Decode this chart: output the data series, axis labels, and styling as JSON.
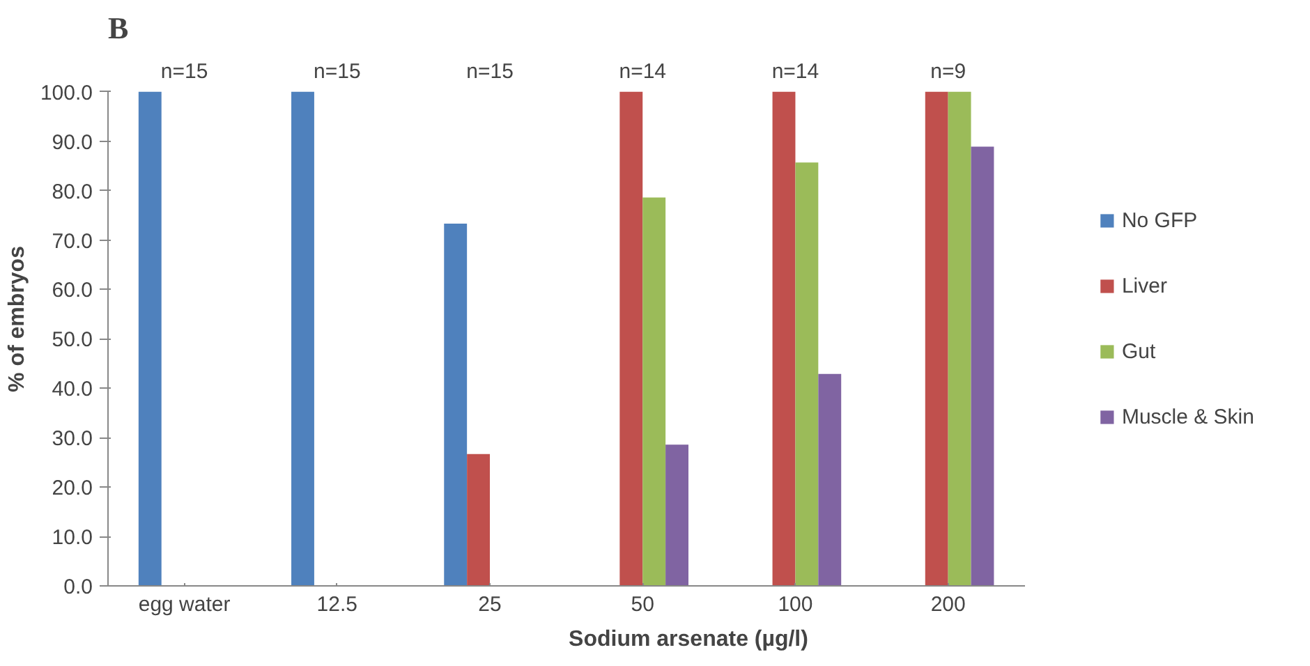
{
  "chart_data": {
    "type": "bar",
    "title": "B",
    "xlabel": "Sodium arsenate (µg/l)",
    "ylabel": "% of embryos",
    "categories": [
      "egg water",
      "12.5",
      "25",
      "50",
      "100",
      "200"
    ],
    "series": [
      {
        "name": "No GFP",
        "color": "#4f81bd",
        "values": [
          100,
          100,
          73.3,
          0,
          0,
          0
        ]
      },
      {
        "name": "Liver",
        "color": "#c0504d",
        "values": [
          0,
          0,
          26.7,
          100,
          100,
          100
        ]
      },
      {
        "name": "Gut",
        "color": "#9bbb59",
        "values": [
          0,
          0,
          0,
          78.6,
          85.7,
          100
        ]
      },
      {
        "name": "Muscle & Skin",
        "color": "#8064a2",
        "values": [
          0,
          0,
          0,
          28.6,
          42.9,
          88.9
        ]
      }
    ],
    "ylim": [
      0,
      100
    ],
    "yticks": [
      {
        "value": 0,
        "label": "0.0"
      },
      {
        "value": 10,
        "label": "10.0"
      },
      {
        "value": 20,
        "label": "20.0"
      },
      {
        "value": 30,
        "label": "30.0"
      },
      {
        "value": 40,
        "label": "40.0"
      },
      {
        "value": 50,
        "label": "50.0"
      },
      {
        "value": 60,
        "label": "60.0"
      },
      {
        "value": 70,
        "label": "70.0"
      },
      {
        "value": 80,
        "label": "80.0"
      },
      {
        "value": 90,
        "label": "90.0"
      },
      {
        "value": 100,
        "label": "100.0"
      }
    ],
    "annotations": [
      "n=15",
      "n=15",
      "n=15",
      "n=14",
      "n=14",
      "n=9"
    ],
    "grid": false,
    "legend": "right"
  }
}
